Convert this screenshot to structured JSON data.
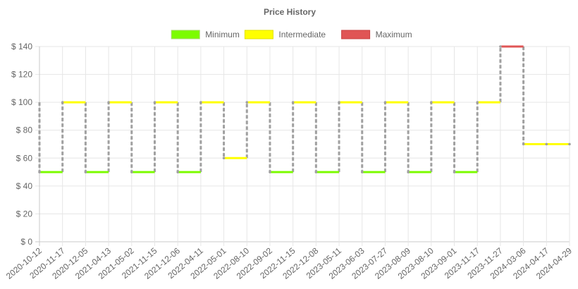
{
  "chart_data": {
    "type": "line",
    "title": "Price History",
    "y_tick_prefix": "$ ",
    "ylim": [
      0,
      140
    ],
    "y_ticks": [
      0,
      20,
      40,
      60,
      80,
      100,
      120,
      140
    ],
    "grid": true,
    "legend_position": "top",
    "categories": [
      "2020-10-12",
      "2020-11-17",
      "2020-12-05",
      "2021-04-13",
      "2021-05-02",
      "2021-11-15",
      "2021-12-06",
      "2022-04-11",
      "2022-05-01",
      "2022-08-10",
      "2022-09-02",
      "2022-11-15",
      "2022-12-08",
      "2023-05-11",
      "2023-06-03",
      "2023-07-27",
      "2023-08-09",
      "2023-08-10",
      "2023-09-01",
      "2023-11-17",
      "2023-11-27",
      "2024-03-06",
      "2024-04-17",
      "2024-04-29"
    ],
    "values": [
      50,
      100,
      50,
      100,
      50,
      100,
      50,
      100,
      60,
      100,
      50,
      100,
      50,
      100,
      50,
      100,
      50,
      100,
      50,
      100,
      140,
      70,
      70,
      70
    ],
    "series": [
      {
        "name": "Minimum",
        "color": "#7cfc00",
        "border": "#a6d96a"
      },
      {
        "name": "Intermediate",
        "color": "#ffff00",
        "border": "#e0e000"
      },
      {
        "name": "Maximum",
        "color": "#e05555",
        "border": "#c94040"
      }
    ],
    "connector_color": "#a0a0a0"
  }
}
